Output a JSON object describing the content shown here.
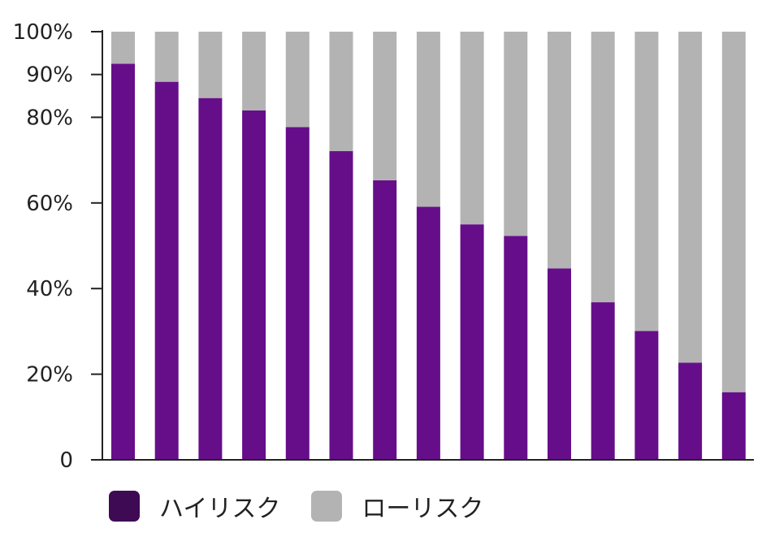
{
  "chart_data": {
    "type": "bar",
    "stacked": true,
    "categories": [
      "",
      "",
      "",
      "",
      "",
      "",
      "",
      "",
      "",
      "",
      "",
      "",
      "",
      "",
      ""
    ],
    "series": [
      {
        "name": "ハイリスク",
        "color": "#660e8a",
        "values": [
          92.5,
          88.3,
          84.5,
          81.6,
          77.7,
          72.1,
          65.3,
          59.1,
          55.0,
          52.3,
          44.7,
          36.8,
          30.1,
          22.7,
          15.8
        ]
      },
      {
        "name": "ローリスク",
        "color": "#b3b3b3",
        "values": [
          7.5,
          11.7,
          15.5,
          18.4,
          22.3,
          27.9,
          34.7,
          40.9,
          45.0,
          47.7,
          55.3,
          63.2,
          69.9,
          77.3,
          84.2
        ]
      }
    ],
    "y_ticks": [
      "0",
      "20%",
      "40%",
      "60%",
      "80%",
      "90%",
      "100%"
    ],
    "y_tick_values": [
      0,
      20,
      40,
      60,
      80,
      90,
      100
    ],
    "ylim": [
      0,
      100
    ],
    "grid": false,
    "legend_position": "bottom-left"
  },
  "legend": [
    {
      "label": "ハイリスク",
      "color": "#3f0a54"
    },
    {
      "label": "ローリスク",
      "color": "#b3b3b3"
    }
  ]
}
